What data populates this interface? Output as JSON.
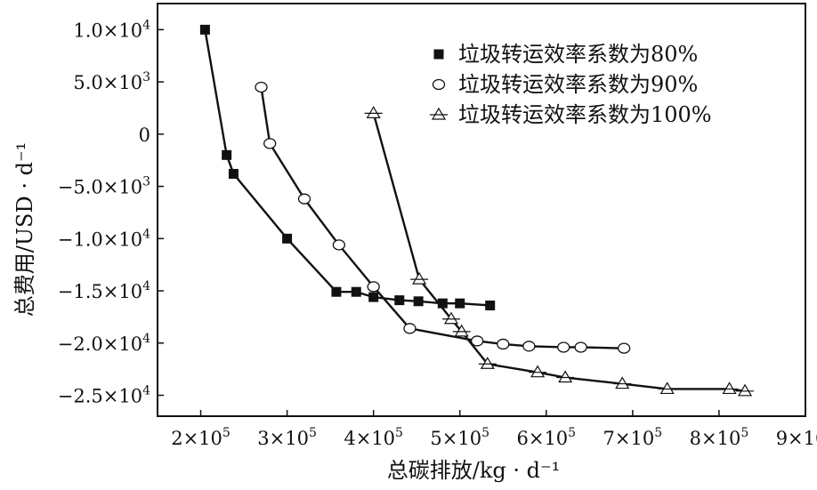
{
  "chart_data": {
    "type": "line",
    "title": "",
    "xlabel": "总碳排放/kg · d⁻¹",
    "ylabel": "总费用/USD · d⁻¹",
    "xlim": [
      150000,
      900000
    ],
    "ylim": [
      -27000,
      12500
    ],
    "x_ticks": [
      200000,
      300000,
      400000,
      500000,
      600000,
      700000,
      800000,
      900000
    ],
    "x_tick_labels": [
      {
        "base": "2×10",
        "exp": "5"
      },
      {
        "base": "3×10",
        "exp": "5"
      },
      {
        "base": "4×10",
        "exp": "5"
      },
      {
        "base": "5×10",
        "exp": "5"
      },
      {
        "base": "6×10",
        "exp": "5"
      },
      {
        "base": "7×10",
        "exp": "5"
      },
      {
        "base": "8×10",
        "exp": "5"
      },
      {
        "base": "9×10",
        "exp": "5"
      }
    ],
    "y_ticks": [
      10000,
      5000,
      0,
      -5000,
      -10000,
      -15000,
      -20000,
      -25000
    ],
    "y_tick_labels": [
      {
        "base": "1.0×10",
        "exp": "4"
      },
      {
        "base": "5.0×10",
        "exp": "3"
      },
      {
        "base": "0",
        "exp": ""
      },
      {
        "base": "−5.0×10",
        "exp": "3"
      },
      {
        "base": "−1.0×10",
        "exp": "4"
      },
      {
        "base": "−1.5×10",
        "exp": "4"
      },
      {
        "base": "−2.0×10",
        "exp": "4"
      },
      {
        "base": "−2.5×10",
        "exp": "4"
      }
    ],
    "grid": false,
    "legend_position": "top-right",
    "series": [
      {
        "name": "垃圾转运效率系数为80%",
        "marker": "square",
        "points": [
          [
            205000,
            10000
          ],
          [
            230000,
            -2000
          ],
          [
            238000,
            -3800
          ],
          [
            300000,
            -10000
          ],
          [
            357000,
            -15100
          ],
          [
            380000,
            -15100
          ],
          [
            400000,
            -15600
          ],
          [
            430000,
            -15900
          ],
          [
            452000,
            -16000
          ],
          [
            480000,
            -16200
          ],
          [
            500000,
            -16200
          ],
          [
            535000,
            -16400
          ]
        ]
      },
      {
        "name": "垃圾转运效率系数为90%",
        "marker": "circle",
        "points": [
          [
            270000,
            4500
          ],
          [
            280000,
            -900
          ],
          [
            320000,
            -6200
          ],
          [
            360000,
            -10600
          ],
          [
            400000,
            -14600
          ],
          [
            442000,
            -18600
          ],
          [
            520000,
            -19800
          ],
          [
            550000,
            -20100
          ],
          [
            580000,
            -20300
          ],
          [
            620000,
            -20400
          ],
          [
            640000,
            -20400
          ],
          [
            690000,
            -20500
          ]
        ]
      },
      {
        "name": "垃圾转运效率系数为100%",
        "marker": "triangle",
        "points": [
          [
            400000,
            2000
          ],
          [
            453000,
            -13900
          ],
          [
            490000,
            -17700
          ],
          [
            502000,
            -18900
          ],
          [
            532000,
            -22000
          ],
          [
            590000,
            -22800
          ],
          [
            622000,
            -23300
          ],
          [
            688000,
            -23900
          ],
          [
            740000,
            -24400
          ],
          [
            812000,
            -24400
          ],
          [
            830000,
            -24600
          ]
        ]
      }
    ]
  }
}
